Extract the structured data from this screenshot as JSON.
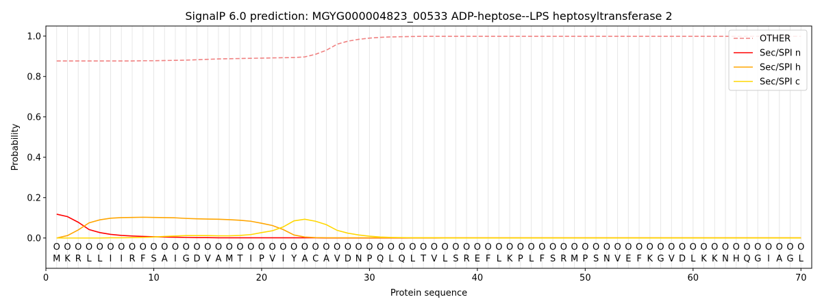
{
  "chart_data": {
    "type": "line",
    "title": "SignalP 6.0 prediction: MGYG000004823_00533 ADP-heptose--LPS heptosyltransferase 2",
    "xlabel": "Protein sequence",
    "ylabel": "Probability",
    "xlim": [
      0,
      71
    ],
    "ylim": [
      -0.15,
      1.05
    ],
    "x_ticks": [
      0,
      10,
      20,
      30,
      40,
      50,
      60,
      70
    ],
    "y_ticks": [
      0.0,
      0.2,
      0.4,
      0.6,
      0.8,
      1.0
    ],
    "x_tick_labels": [
      "0",
      "10",
      "20",
      "30",
      "40",
      "50",
      "60",
      "70"
    ],
    "y_tick_labels": [
      "0.0",
      "0.2",
      "0.4",
      "0.6",
      "0.8",
      "1.0"
    ],
    "grid": "vertical lines at each residue",
    "legend_position": "top-right",
    "sequence": [
      "M",
      "K",
      "R",
      "L",
      "L",
      "I",
      "I",
      "R",
      "F",
      "S",
      "A",
      "I",
      "G",
      "D",
      "V",
      "A",
      "M",
      "T",
      "I",
      "P",
      "V",
      "I",
      "Y",
      "A",
      "C",
      "A",
      "V",
      "D",
      "N",
      "P",
      "Q",
      "L",
      "Q",
      "L",
      "T",
      "V",
      "L",
      "S",
      "R",
      "E",
      "F",
      "L",
      "K",
      "P",
      "L",
      "F",
      "S",
      "R",
      "M",
      "P",
      "S",
      "N",
      "V",
      "E",
      "F",
      "K",
      "G",
      "V",
      "D",
      "L",
      "K",
      "K",
      "N",
      "H",
      "Q",
      "G",
      "I",
      "A",
      "G",
      "L"
    ],
    "marker_symbol": "O",
    "series": [
      {
        "name": "OTHER",
        "color": "#f08080",
        "dash": true,
        "values": [
          0.877,
          0.877,
          0.877,
          0.877,
          0.877,
          0.877,
          0.877,
          0.877,
          0.878,
          0.878,
          0.879,
          0.88,
          0.881,
          0.883,
          0.885,
          0.887,
          0.888,
          0.889,
          0.89,
          0.891,
          0.892,
          0.893,
          0.894,
          0.897,
          0.91,
          0.93,
          0.96,
          0.975,
          0.984,
          0.99,
          0.994,
          0.996,
          0.997,
          0.998,
          0.999,
          0.999,
          0.999,
          0.999,
          0.999,
          0.999,
          0.999,
          0.999,
          0.999,
          0.999,
          0.999,
          0.999,
          0.999,
          0.999,
          0.999,
          0.999,
          0.999,
          0.999,
          0.999,
          0.999,
          0.999,
          0.999,
          0.999,
          0.999,
          0.999,
          0.999,
          0.999,
          0.999,
          0.999,
          0.999,
          0.999,
          0.999,
          0.999,
          0.999,
          0.999,
          0.999
        ]
      },
      {
        "name": "Sec/SPI n",
        "color": "#ff0000",
        "dash": false,
        "values": [
          0.118,
          0.106,
          0.078,
          0.042,
          0.027,
          0.018,
          0.013,
          0.01,
          0.008,
          0.006,
          0.005,
          0.004,
          0.003,
          0.002,
          0.002,
          0.001,
          0.001,
          0.001,
          0.001,
          0.001,
          0.001,
          0.001,
          0.001,
          0.001,
          0.001,
          0.0,
          0.0,
          0.0,
          0.0,
          0.0,
          0.0,
          0.0,
          0.0,
          0.0,
          0.0,
          0.0,
          0.0,
          0.0,
          0.0,
          0.0,
          0.0,
          0.0,
          0.0,
          0.0,
          0.0,
          0.0,
          0.0,
          0.0,
          0.0,
          0.0,
          0.0,
          0.0,
          0.0,
          0.0,
          0.0,
          0.0,
          0.0,
          0.0,
          0.0,
          0.0,
          0.0,
          0.0,
          0.0,
          0.0,
          0.0,
          0.0,
          0.0,
          0.0,
          0.0,
          0.0
        ]
      },
      {
        "name": "Sec/SPI h",
        "color": "#ffa500",
        "dash": false,
        "values": [
          0.0,
          0.012,
          0.04,
          0.075,
          0.09,
          0.098,
          0.101,
          0.102,
          0.103,
          0.102,
          0.101,
          0.1,
          0.097,
          0.095,
          0.094,
          0.093,
          0.091,
          0.088,
          0.083,
          0.073,
          0.062,
          0.042,
          0.015,
          0.005,
          0.002,
          0.001,
          0.001,
          0.001,
          0.001,
          0.001,
          0.001,
          0.001,
          0.001,
          0.001,
          0.001,
          0.001,
          0.001,
          0.001,
          0.001,
          0.001,
          0.001,
          0.001,
          0.001,
          0.001,
          0.001,
          0.001,
          0.001,
          0.001,
          0.001,
          0.001,
          0.001,
          0.001,
          0.001,
          0.001,
          0.001,
          0.001,
          0.001,
          0.001,
          0.001,
          0.001,
          0.001,
          0.001,
          0.001,
          0.001,
          0.001,
          0.001,
          0.001,
          0.001,
          0.001,
          0.001
        ]
      },
      {
        "name": "Sec/SPI c",
        "color": "#ffd700",
        "dash": false,
        "values": [
          0.0,
          0.0,
          0.0,
          0.0,
          0.0,
          0.001,
          0.001,
          0.002,
          0.003,
          0.005,
          0.008,
          0.01,
          0.012,
          0.012,
          0.012,
          0.011,
          0.011,
          0.013,
          0.017,
          0.027,
          0.036,
          0.055,
          0.085,
          0.093,
          0.083,
          0.066,
          0.038,
          0.024,
          0.015,
          0.009,
          0.005,
          0.003,
          0.002,
          0.001,
          0.001,
          0.001,
          0.0,
          0.0,
          0.0,
          0.0,
          0.0,
          0.0,
          0.0,
          0.0,
          0.0,
          0.0,
          0.0,
          0.0,
          0.0,
          0.0,
          0.0,
          0.0,
          0.0,
          0.0,
          0.0,
          0.0,
          0.0,
          0.0,
          0.0,
          0.0,
          0.0,
          0.0,
          0.0,
          0.0,
          0.0,
          0.0,
          0.0,
          0.0,
          0.0,
          0.0
        ]
      }
    ]
  }
}
